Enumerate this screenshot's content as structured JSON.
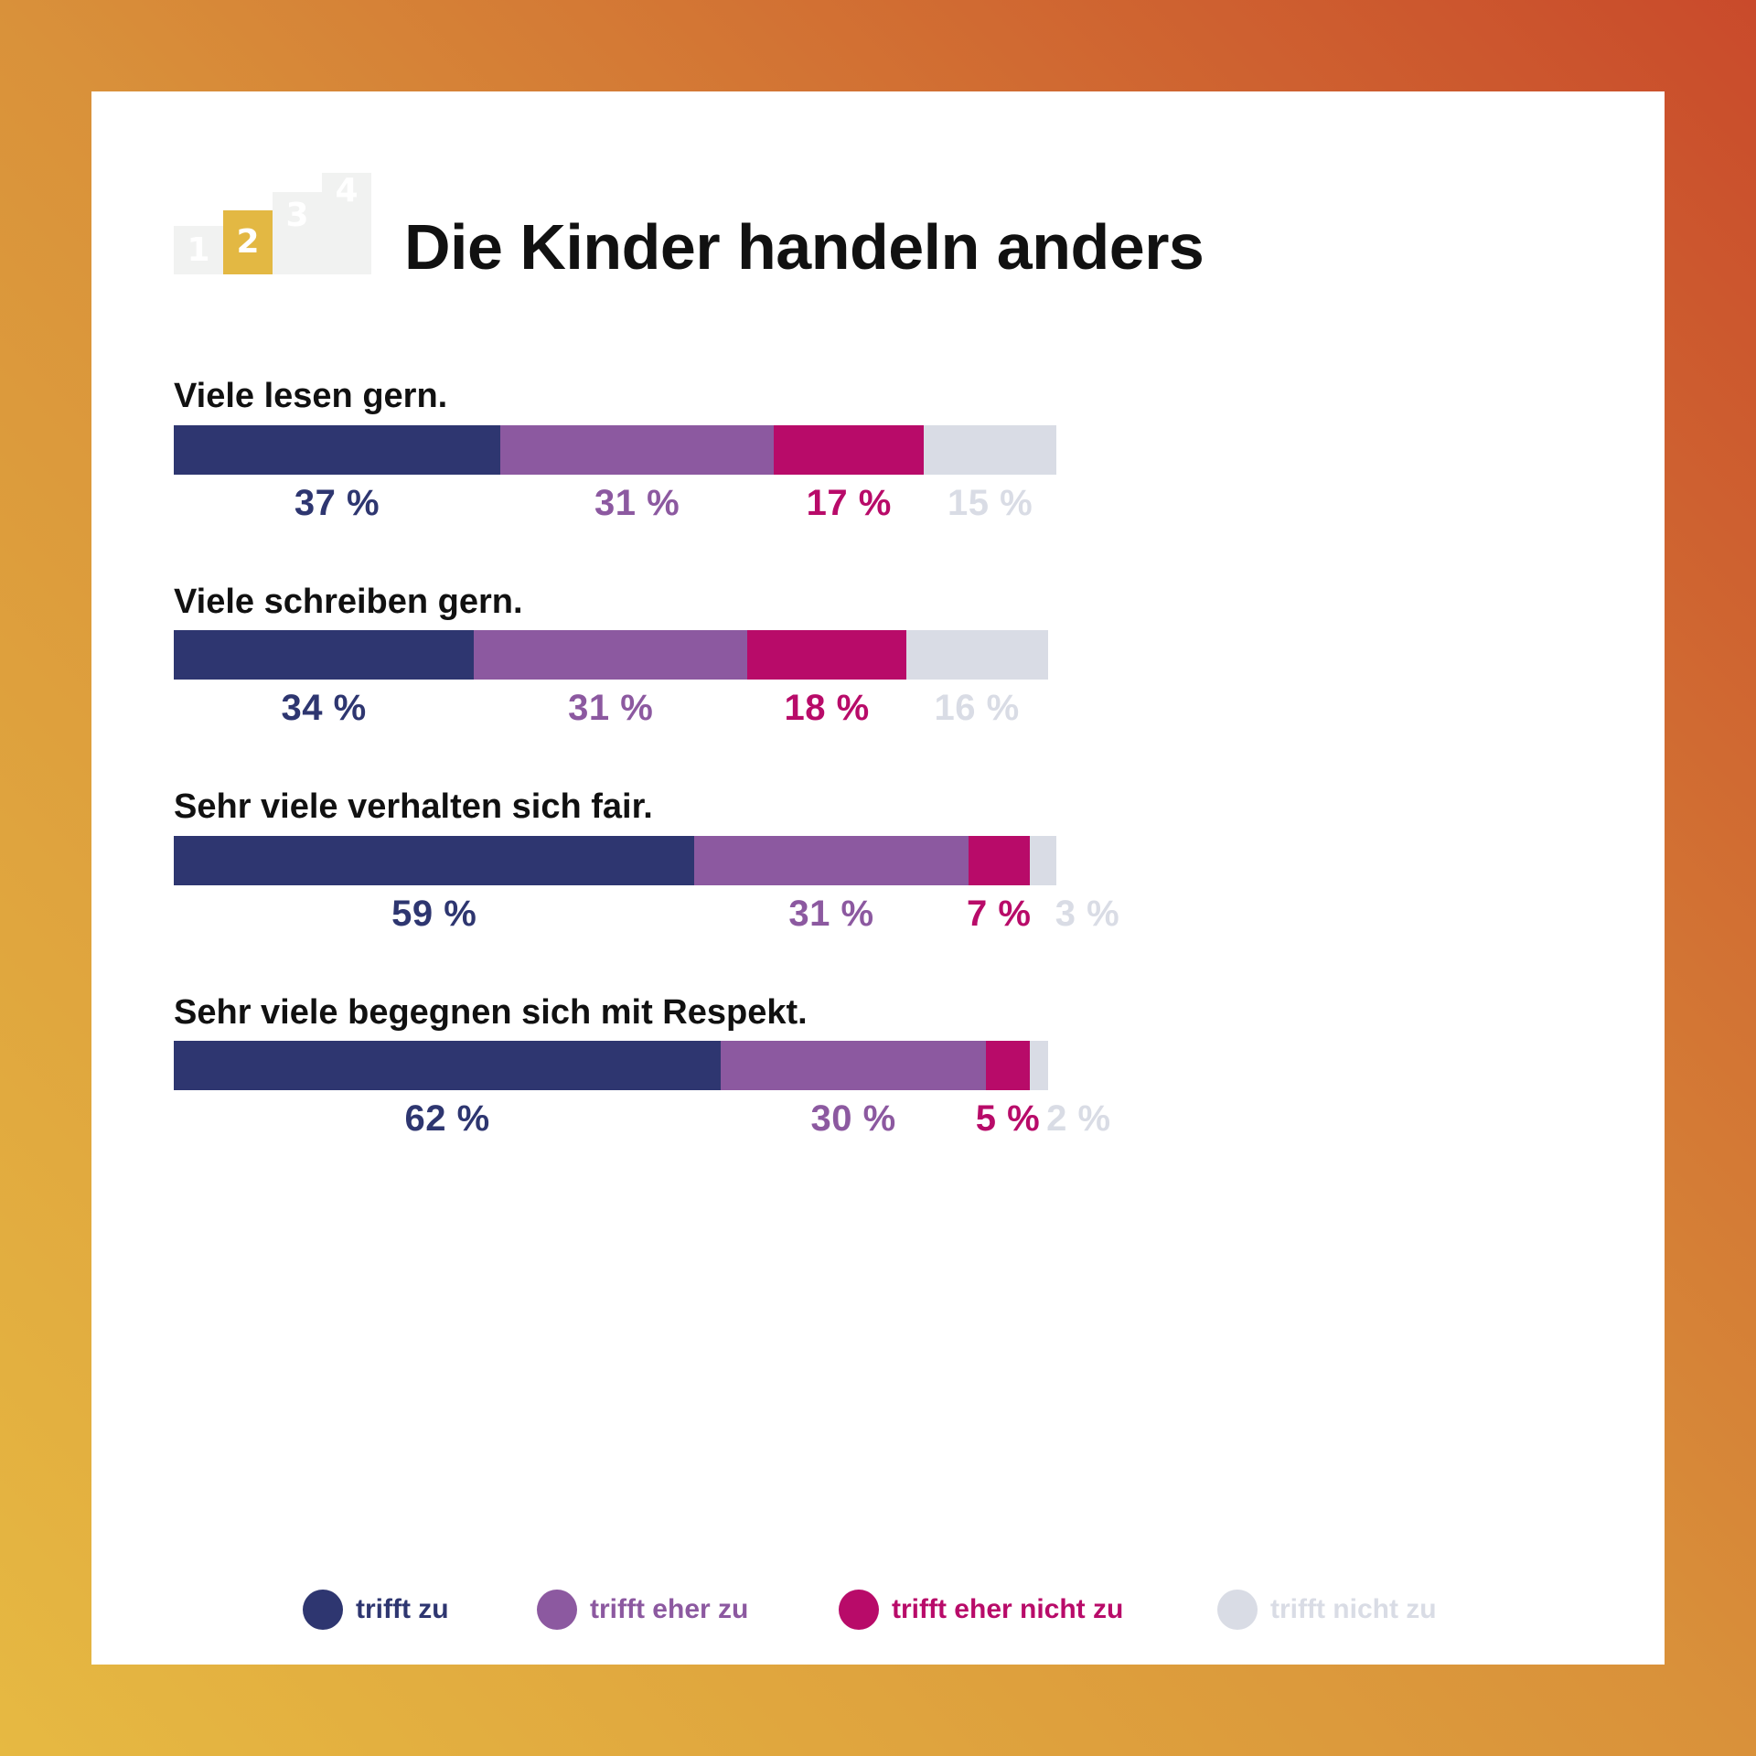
{
  "title": "Die Kinder handeln anders",
  "steps": [
    "1",
    "2",
    "3",
    "4"
  ],
  "active_step": 2,
  "colors": {
    "trifft_zu": "#2e3670",
    "trifft_eher_zu": "#8c59a0",
    "trifft_eher_nicht_zu": "#b80b69",
    "trifft_nicht_zu": "#d9dce5"
  },
  "chart_data": {
    "type": "bar",
    "orientation": "horizontal",
    "stacked": true,
    "categories": [
      "Viele lesen gern.",
      "Viele schreiben gern.",
      "Sehr viele verhalten sich fair.",
      "Sehr viele begegnen sich mit Respekt."
    ],
    "series": [
      {
        "name": "trifft zu",
        "values": [
          37,
          34,
          59,
          62
        ]
      },
      {
        "name": "trifft eher zu",
        "values": [
          31,
          31,
          31,
          30
        ]
      },
      {
        "name": "trifft eher nicht zu",
        "values": [
          17,
          18,
          7,
          5
        ]
      },
      {
        "name": "trifft nicht zu",
        "values": [
          15,
          16,
          3,
          2
        ]
      }
    ],
    "labels": [
      [
        "37 %",
        "31 %",
        "17 %",
        "15 %"
      ],
      [
        "34 %",
        "31 %",
        "18 %",
        "16 %"
      ],
      [
        "59 %",
        "31 %",
        "7 %",
        "3 %"
      ],
      [
        "62 %",
        "30 %",
        "5 %",
        "2 %"
      ]
    ],
    "xlim": [
      0,
      100
    ],
    "legend_position": "bottom",
    "grid": false
  }
}
